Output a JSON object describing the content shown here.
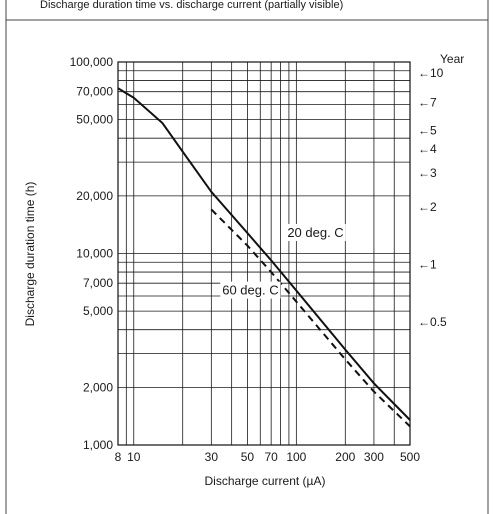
{
  "header_text": "Discharge duration time vs. discharge current (partially visible)",
  "chart_data": {
    "type": "line",
    "title": "",
    "xlabel": "Discharge current  (µA)",
    "ylabel": "Discharge duration time (h)",
    "x_scale": "log",
    "y_scale": "log",
    "xlim": [
      8,
      500
    ],
    "ylim": [
      1000,
      100000
    ],
    "grid": true,
    "x_ticks": [
      8,
      10,
      30,
      50,
      70,
      100,
      200,
      300,
      500
    ],
    "x_tick_labels": [
      "8",
      "10",
      "30",
      "50",
      "70",
      "100",
      "200",
      "300",
      "500"
    ],
    "y_ticks": [
      1000,
      2000,
      5000,
      7000,
      10000,
      20000,
      50000,
      70000,
      100000
    ],
    "y_tick_labels": [
      "1,000",
      "2,000",
      "5,000",
      "7,000",
      "10,000",
      "20,000",
      "50,000",
      "70,000",
      "100,000"
    ],
    "right_axis": {
      "title": "Year",
      "labels": [
        {
          "text": "←10",
          "value": 87600
        },
        {
          "text": "←7",
          "value": 61320
        },
        {
          "text": "←5",
          "value": 43800
        },
        {
          "text": "←4",
          "value": 35040
        },
        {
          "text": "←3",
          "value": 26280
        },
        {
          "text": "←2",
          "value": 17520
        },
        {
          "text": "←1",
          "value": 8760
        },
        {
          "text": "←0.5",
          "value": 4380
        }
      ]
    },
    "series": [
      {
        "name": "20 deg. C",
        "style": "solid",
        "color": "#111111",
        "points": [
          [
            8,
            73000
          ],
          [
            10,
            65000
          ],
          [
            15,
            48000
          ],
          [
            20,
            34000
          ],
          [
            30,
            21000
          ],
          [
            50,
            12800
          ],
          [
            70,
            9200
          ],
          [
            100,
            6400
          ],
          [
            200,
            3150
          ],
          [
            300,
            2100
          ],
          [
            500,
            1350
          ]
        ]
      },
      {
        "name": "60 deg. C",
        "style": "dashed",
        "color": "#111111",
        "points": [
          [
            30,
            17000
          ],
          [
            50,
            11000
          ],
          [
            70,
            8000
          ],
          [
            100,
            5600
          ],
          [
            200,
            2800
          ],
          [
            300,
            1900
          ],
          [
            500,
            1250
          ]
        ]
      }
    ]
  }
}
